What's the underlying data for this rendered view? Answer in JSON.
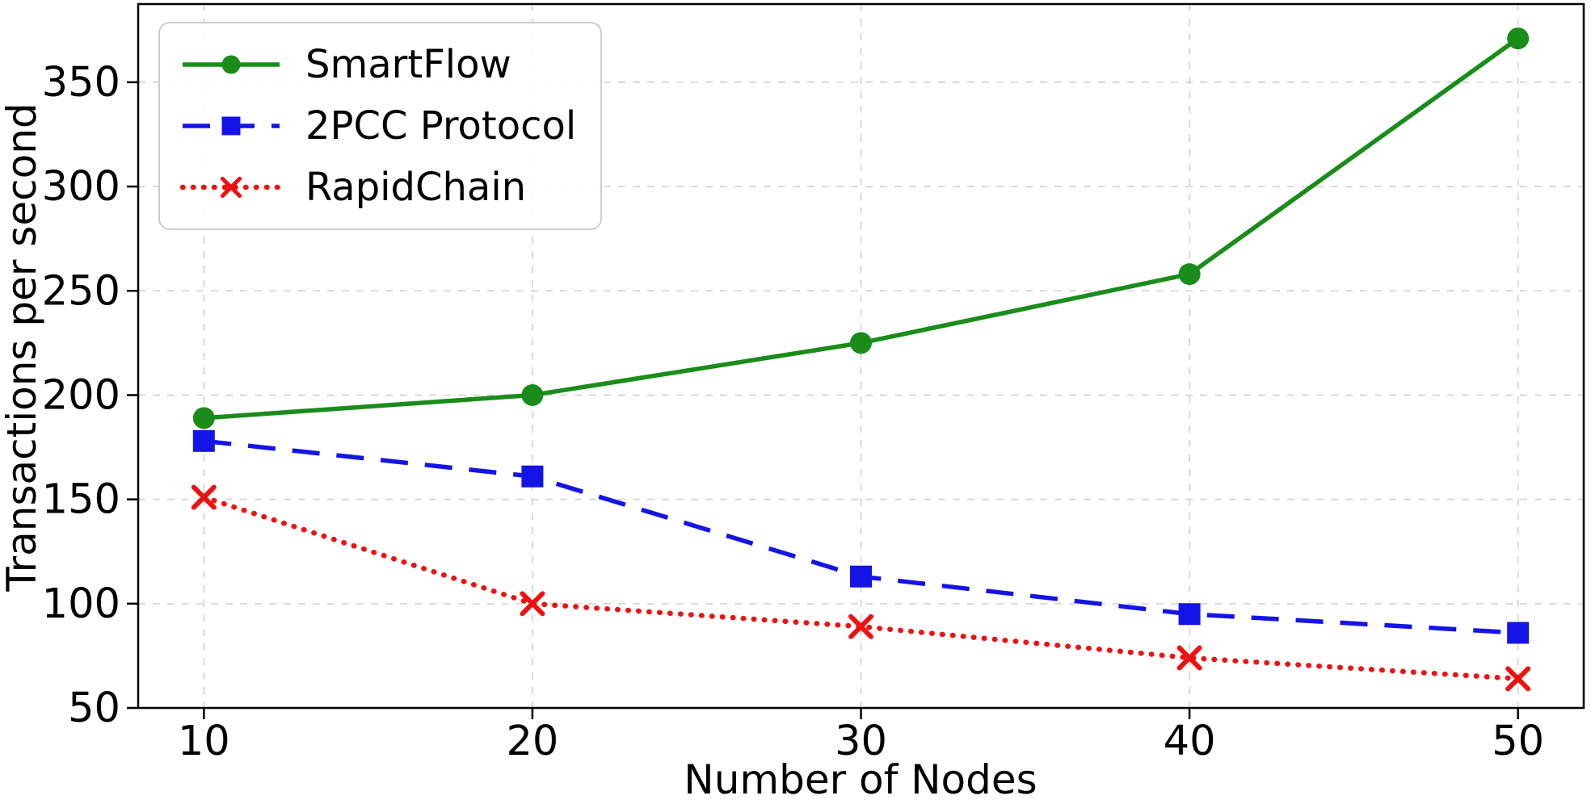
{
  "chart_data": {
    "type": "line",
    "title": "",
    "xlabel": "Number of Nodes",
    "ylabel": "Transactions per second",
    "x": [
      10,
      20,
      30,
      40,
      50
    ],
    "series": [
      {
        "name": "SmartFlow",
        "color": "#1a8c1a",
        "line": "solid",
        "marker": "circle",
        "values": [
          189,
          200,
          225,
          258,
          371
        ]
      },
      {
        "name": "2PCC Protocol",
        "color": "#1414e6",
        "line": "dashed",
        "marker": "square",
        "values": [
          178,
          161,
          113,
          95,
          86
        ]
      },
      {
        "name": "RapidChain",
        "color": "#ee1111",
        "line": "dotted",
        "marker": "x",
        "values": [
          151,
          100,
          89,
          74,
          64
        ]
      }
    ],
    "xticks": [
      10,
      20,
      30,
      40,
      50
    ],
    "yticks": [
      50,
      100,
      150,
      200,
      250,
      300,
      350
    ],
    "xlim": [
      8,
      52
    ],
    "ylim": [
      50,
      387.5
    ],
    "grid": true,
    "grid_color": "#d9d9d9",
    "spine_color": "#000000",
    "legend_position": "upper-left"
  }
}
